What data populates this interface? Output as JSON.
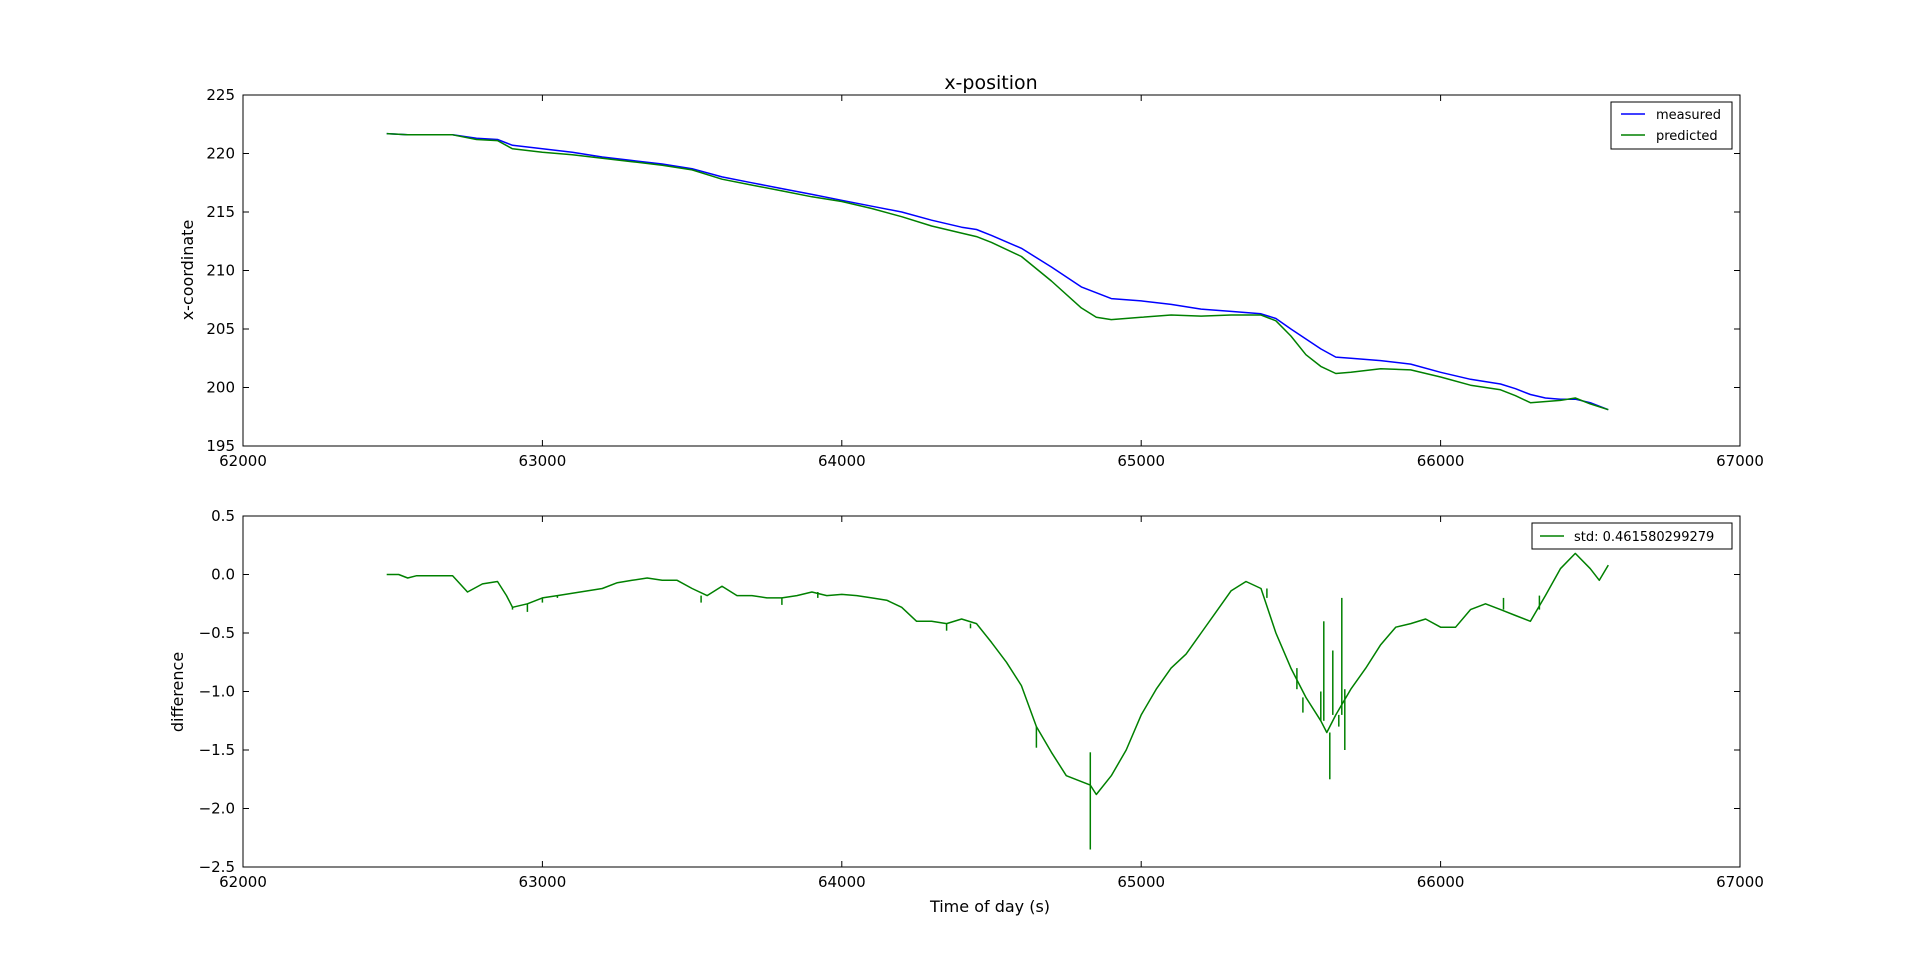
{
  "chart_data": [
    {
      "type": "line",
      "title": "x-position",
      "xlabel": "",
      "ylabel": "x-coordinate",
      "xlim": [
        62000,
        67000
      ],
      "ylim": [
        195,
        225
      ],
      "xticks": [
        "62000",
        "63000",
        "64000",
        "65000",
        "66000",
        "67000"
      ],
      "yticks": [
        "195",
        "200",
        "205",
        "210",
        "215",
        "220",
        "225"
      ],
      "legend_position": "top-right",
      "series": [
        {
          "name": "measured",
          "color": "#0000ff",
          "points": [
            [
              62480,
              221.7
            ],
            [
              62550,
              221.6
            ],
            [
              62700,
              221.6
            ],
            [
              62780,
              221.3
            ],
            [
              62850,
              221.2
            ],
            [
              62900,
              220.7
            ],
            [
              63000,
              220.4
            ],
            [
              63100,
              220.1
            ],
            [
              63200,
              219.7
            ],
            [
              63300,
              219.4
            ],
            [
              63400,
              219.1
            ],
            [
              63500,
              218.7
            ],
            [
              63600,
              218.0
            ],
            [
              63700,
              217.5
            ],
            [
              63800,
              217.0
            ],
            [
              63900,
              216.5
            ],
            [
              64000,
              216.0
            ],
            [
              64100,
              215.5
            ],
            [
              64200,
              215.0
            ],
            [
              64300,
              214.3
            ],
            [
              64400,
              213.7
            ],
            [
              64450,
              213.5
            ],
            [
              64500,
              213.0
            ],
            [
              64600,
              211.9
            ],
            [
              64700,
              210.3
            ],
            [
              64800,
              208.6
            ],
            [
              64900,
              207.6
            ],
            [
              65000,
              207.4
            ],
            [
              65100,
              207.1
            ],
            [
              65200,
              206.7
            ],
            [
              65300,
              206.5
            ],
            [
              65400,
              206.3
            ],
            [
              65450,
              205.9
            ],
            [
              65500,
              205.0
            ],
            [
              65600,
              203.3
            ],
            [
              65650,
              202.6
            ],
            [
              65700,
              202.5
            ],
            [
              65800,
              202.3
            ],
            [
              65900,
              202.0
            ],
            [
              66000,
              201.3
            ],
            [
              66100,
              200.7
            ],
            [
              66200,
              200.3
            ],
            [
              66250,
              199.9
            ],
            [
              66300,
              199.4
            ],
            [
              66350,
              199.1
            ],
            [
              66400,
              199.0
            ],
            [
              66450,
              199.0
            ],
            [
              66500,
              198.7
            ],
            [
              66560,
              198.1
            ]
          ]
        },
        {
          "name": "predicted",
          "color": "#008000",
          "points": [
            [
              62480,
              221.7
            ],
            [
              62550,
              221.6
            ],
            [
              62700,
              221.6
            ],
            [
              62780,
              221.2
            ],
            [
              62850,
              221.1
            ],
            [
              62900,
              220.4
            ],
            [
              63000,
              220.1
            ],
            [
              63100,
              219.9
            ],
            [
              63200,
              219.6
            ],
            [
              63300,
              219.3
            ],
            [
              63400,
              219.0
            ],
            [
              63500,
              218.6
            ],
            [
              63600,
              217.8
            ],
            [
              63700,
              217.3
            ],
            [
              63800,
              216.8
            ],
            [
              63900,
              216.3
            ],
            [
              64000,
              215.9
            ],
            [
              64100,
              215.3
            ],
            [
              64200,
              214.6
            ],
            [
              64300,
              213.8
            ],
            [
              64400,
              213.2
            ],
            [
              64450,
              212.9
            ],
            [
              64500,
              212.4
            ],
            [
              64600,
              211.2
            ],
            [
              64700,
              209.1
            ],
            [
              64800,
              206.8
            ],
            [
              64850,
              206.0
            ],
            [
              64900,
              205.8
            ],
            [
              65000,
              206.0
            ],
            [
              65100,
              206.2
            ],
            [
              65200,
              206.1
            ],
            [
              65300,
              206.2
            ],
            [
              65400,
              206.2
            ],
            [
              65450,
              205.7
            ],
            [
              65500,
              204.4
            ],
            [
              65550,
              202.8
            ],
            [
              65600,
              201.8
            ],
            [
              65650,
              201.2
            ],
            [
              65700,
              201.3
            ],
            [
              65800,
              201.6
            ],
            [
              65900,
              201.5
            ],
            [
              66000,
              200.9
            ],
            [
              66100,
              200.2
            ],
            [
              66200,
              199.8
            ],
            [
              66250,
              199.3
            ],
            [
              66300,
              198.7
            ],
            [
              66400,
              198.9
            ],
            [
              66450,
              199.1
            ],
            [
              66500,
              198.6
            ],
            [
              66560,
              198.1
            ]
          ]
        }
      ]
    },
    {
      "type": "line",
      "title": "",
      "xlabel": "Time of day (s)",
      "ylabel": "difference",
      "xlim": [
        62000,
        67000
      ],
      "ylim": [
        -2.5,
        0.5
      ],
      "xticks": [
        "62000",
        "63000",
        "64000",
        "65000",
        "66000",
        "67000"
      ],
      "yticks": [
        "−2.5",
        "−2.0",
        "−1.5",
        "−1.0",
        "−0.5",
        "0.0",
        "0.5"
      ],
      "legend_position": "top-right",
      "series": [
        {
          "name": "std: 0.461580299279",
          "color": "#008000",
          "points": [
            [
              62480,
              0.0
            ],
            [
              62520,
              0.0
            ],
            [
              62550,
              -0.03
            ],
            [
              62580,
              -0.01
            ],
            [
              62650,
              -0.01
            ],
            [
              62700,
              -0.01
            ],
            [
              62750,
              -0.15
            ],
            [
              62800,
              -0.08
            ],
            [
              62850,
              -0.06
            ],
            [
              62880,
              -0.18
            ],
            [
              62900,
              -0.28
            ],
            [
              62950,
              -0.25
            ],
            [
              63000,
              -0.2
            ],
            [
              63050,
              -0.18
            ],
            [
              63100,
              -0.16
            ],
            [
              63150,
              -0.14
            ],
            [
              63200,
              -0.12
            ],
            [
              63250,
              -0.07
            ],
            [
              63300,
              -0.05
            ],
            [
              63350,
              -0.03
            ],
            [
              63400,
              -0.05
            ],
            [
              63450,
              -0.05
            ],
            [
              63500,
              -0.12
            ],
            [
              63550,
              -0.18
            ],
            [
              63600,
              -0.1
            ],
            [
              63650,
              -0.18
            ],
            [
              63700,
              -0.18
            ],
            [
              63750,
              -0.2
            ],
            [
              63800,
              -0.2
            ],
            [
              63850,
              -0.18
            ],
            [
              63900,
              -0.15
            ],
            [
              63950,
              -0.18
            ],
            [
              64000,
              -0.17
            ],
            [
              64050,
              -0.18
            ],
            [
              64100,
              -0.2
            ],
            [
              64150,
              -0.22
            ],
            [
              64200,
              -0.28
            ],
            [
              64250,
              -0.4
            ],
            [
              64300,
              -0.4
            ],
            [
              64350,
              -0.42
            ],
            [
              64400,
              -0.38
            ],
            [
              64450,
              -0.42
            ],
            [
              64500,
              -0.58
            ],
            [
              64550,
              -0.75
            ],
            [
              64600,
              -0.95
            ],
            [
              64650,
              -1.3
            ],
            [
              64700,
              -1.52
            ],
            [
              64750,
              -1.72
            ],
            [
              64800,
              -1.77
            ],
            [
              64830,
              -1.8
            ],
            [
              64850,
              -1.88
            ],
            [
              64900,
              -1.72
            ],
            [
              64950,
              -1.5
            ],
            [
              65000,
              -1.2
            ],
            [
              65050,
              -0.98
            ],
            [
              65100,
              -0.8
            ],
            [
              65150,
              -0.68
            ],
            [
              65200,
              -0.5
            ],
            [
              65250,
              -0.32
            ],
            [
              65300,
              -0.14
            ],
            [
              65350,
              -0.06
            ],
            [
              65400,
              -0.12
            ],
            [
              65450,
              -0.5
            ],
            [
              65500,
              -0.8
            ],
            [
              65550,
              -1.05
            ],
            [
              65600,
              -1.25
            ],
            [
              65620,
              -1.35
            ],
            [
              65650,
              -1.2
            ],
            [
              65700,
              -0.98
            ],
            [
              65750,
              -0.8
            ],
            [
              65800,
              -0.6
            ],
            [
              65850,
              -0.45
            ],
            [
              65900,
              -0.42
            ],
            [
              65950,
              -0.38
            ],
            [
              66000,
              -0.45
            ],
            [
              66050,
              -0.45
            ],
            [
              66100,
              -0.3
            ],
            [
              66150,
              -0.25
            ],
            [
              66200,
              -0.3
            ],
            [
              66250,
              -0.35
            ],
            [
              66300,
              -0.4
            ],
            [
              66350,
              -0.18
            ],
            [
              66400,
              0.05
            ],
            [
              66450,
              0.18
            ],
            [
              66500,
              0.05
            ],
            [
              66530,
              -0.05
            ],
            [
              66560,
              0.08
            ]
          ],
          "spikes": [
            [
              62900,
              -0.3
            ],
            [
              62950,
              -0.32
            ],
            [
              63000,
              -0.24
            ],
            [
              63050,
              -0.2
            ],
            [
              63530,
              -0.24
            ],
            [
              63800,
              -0.26
            ],
            [
              63920,
              -0.2
            ],
            [
              64350,
              -0.48
            ],
            [
              64430,
              -0.46
            ],
            [
              64650,
              -1.48
            ],
            [
              64830,
              -2.35
            ],
            [
              64830,
              -1.52
            ],
            [
              65420,
              -0.2
            ],
            [
              65520,
              -0.98
            ],
            [
              65540,
              -1.18
            ],
            [
              65600,
              -1.0
            ],
            [
              65610,
              -0.4
            ],
            [
              65630,
              -1.75
            ],
            [
              65640,
              -0.65
            ],
            [
              65660,
              -1.3
            ],
            [
              65670,
              -0.2
            ],
            [
              65680,
              -1.5
            ],
            [
              66210,
              -0.2
            ],
            [
              66330,
              -0.3
            ]
          ]
        }
      ]
    }
  ]
}
